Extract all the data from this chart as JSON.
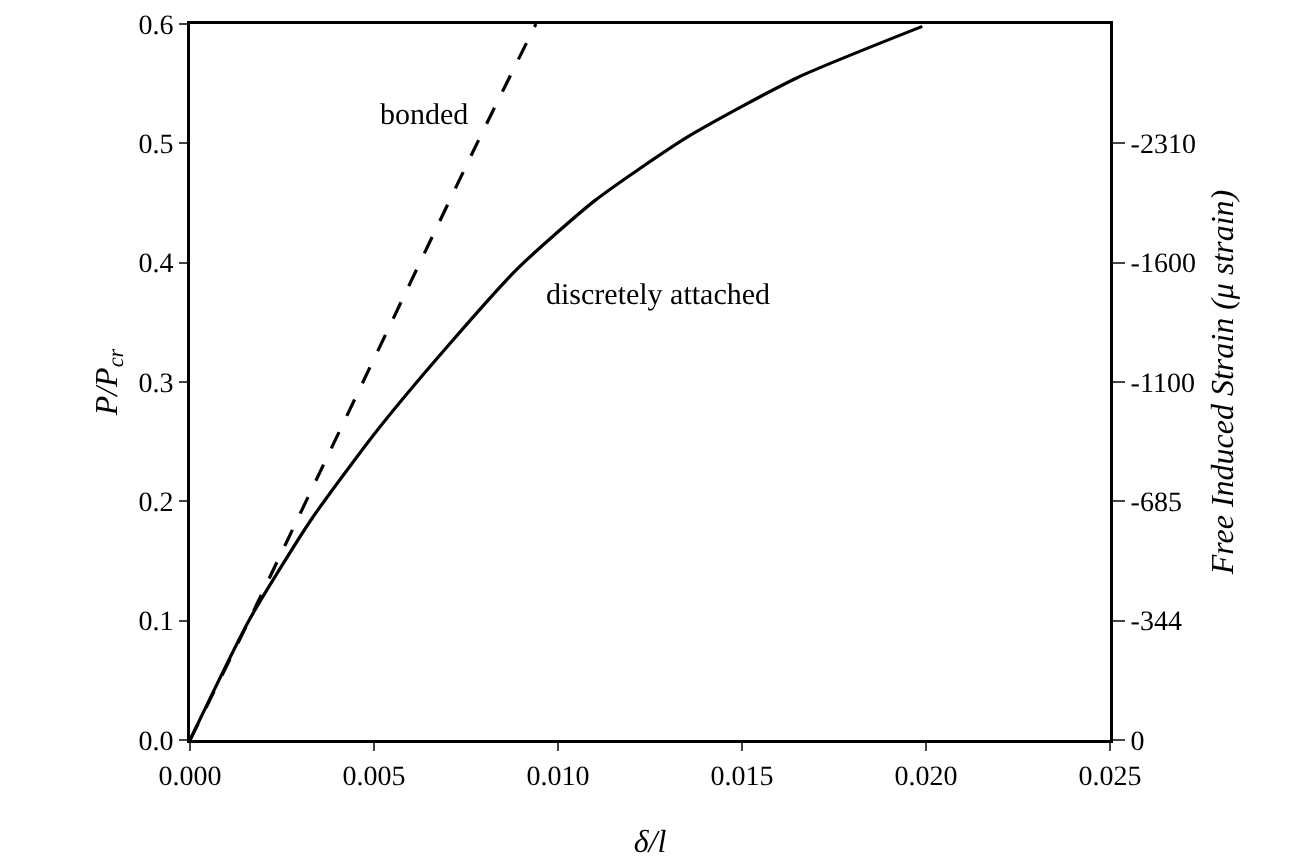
{
  "chart_data": {
    "type": "line",
    "xlabel": "δ/l",
    "ylabel": "P/P$_{cr}$",
    "y2label": "Free Induced Strain (μ strain)",
    "series": [
      {
        "name": "bonded",
        "color": "#000000",
        "line_style": "dashed",
        "x": [
          0,
          0.0016,
          0.0047,
          0.0078,
          0.0094
        ],
        "values": [
          0,
          0.1,
          0.3,
          0.5,
          0.6
        ]
      },
      {
        "name": "discretely attached",
        "color": "#000000",
        "line_style": "solid",
        "x": [
          0,
          0.0016,
          0.0033,
          0.0051,
          0.007,
          0.0089,
          0.011,
          0.0135,
          0.0165,
          0.0199
        ],
        "values": [
          0,
          0.1,
          0.185,
          0.26,
          0.33,
          0.395,
          0.452,
          0.505,
          0.555,
          0.598
        ]
      }
    ],
    "xlim": [
      0,
      0.025
    ],
    "xticks": [
      {
        "value": 0,
        "label": "0.000"
      },
      0.005,
      {
        "value": 0.01,
        "label": "0.010"
      },
      0.015,
      {
        "value": 0.02,
        "label": "0.020"
      },
      0.025
    ],
    "ylim": [
      0,
      0.6
    ],
    "yticks": [
      {
        "value": 0,
        "label": "0.0"
      },
      0.1,
      0.2,
      0.3,
      0.4,
      0.5,
      0.6
    ],
    "y2_categories": [
      null,
      "-2310",
      "-1600",
      "-1100",
      "-685",
      "-344",
      "0"
    ],
    "grid": false,
    "legend": false,
    "marker": "none"
  }
}
